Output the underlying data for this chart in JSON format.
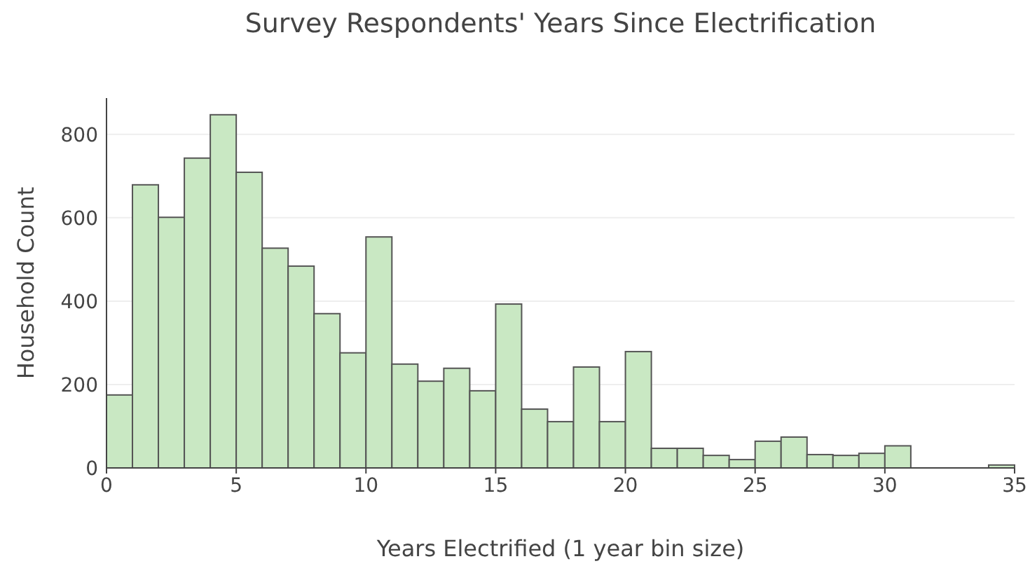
{
  "chart_data": {
    "type": "histogram",
    "title": "Survey Respondents' Years Since Electrification",
    "xlabel": "Years Electrified (1 year bin size)",
    "ylabel": "Household Count",
    "bins": [
      0,
      1,
      2,
      3,
      4,
      5,
      6,
      7,
      8,
      9,
      10,
      11,
      12,
      13,
      14,
      15,
      16,
      17,
      18,
      19,
      20,
      21,
      22,
      23,
      24,
      25,
      26,
      27,
      28,
      29,
      30,
      31,
      32,
      33,
      34,
      35
    ],
    "values": [
      175,
      679,
      601,
      743,
      847,
      709,
      527,
      484,
      370,
      276,
      554,
      249,
      208,
      239,
      185,
      393,
      141,
      111,
      242,
      111,
      279,
      47,
      47,
      30,
      20,
      64,
      74,
      32,
      30,
      35,
      53,
      0,
      0,
      0,
      7
    ],
    "color": "#c9e8c3",
    "xlim": [
      0,
      35
    ],
    "xticks": [
      0,
      5,
      10,
      15,
      20,
      25,
      30,
      35
    ],
    "ylim": [
      0,
      887
    ],
    "yticks": [
      0,
      200,
      400,
      600,
      800
    ],
    "grid": "y"
  }
}
